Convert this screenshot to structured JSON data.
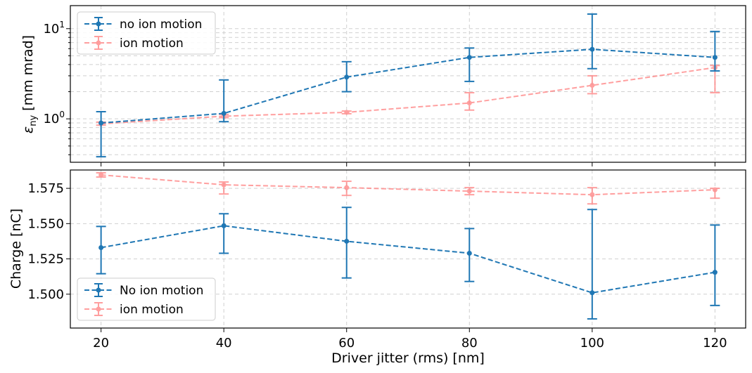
{
  "chart_data": [
    {
      "type": "line",
      "panel": "top",
      "ylabel_symbol": "ε",
      "ylabel_sub": "ny",
      "ylabel_unit": " [mm mrad]",
      "yscale": "log",
      "ylim": [
        0.33,
        18
      ],
      "yticks": [
        {
          "value": 1,
          "base": "10",
          "exp": "0"
        },
        {
          "value": 10,
          "base": "10",
          "exp": "1"
        }
      ],
      "x": [
        20,
        40,
        60,
        80,
        100,
        120
      ],
      "xlim": [
        15,
        125
      ],
      "series": [
        {
          "name": "no ion motion",
          "color": "#1f77b4",
          "alpha": 1,
          "values": [
            0.9,
            1.15,
            2.9,
            4.8,
            5.9,
            4.8
          ],
          "err_low": [
            0.38,
            0.93,
            2.0,
            2.6,
            3.6,
            3.4
          ],
          "err_high": [
            1.2,
            2.7,
            4.3,
            6.1,
            14.5,
            9.3
          ]
        },
        {
          "name": "ion motion",
          "color": "#ff7f7f",
          "alpha": 0.75,
          "values": [
            0.88,
            1.07,
            1.18,
            1.5,
            2.35,
            3.7
          ],
          "err_low": [
            0.85,
            1.03,
            1.14,
            1.25,
            1.9,
            1.95
          ],
          "err_high": [
            0.92,
            1.12,
            1.22,
            1.95,
            3.0,
            3.9
          ]
        }
      ]
    },
    {
      "type": "line",
      "panel": "bottom",
      "ylabel": "Charge [nC]",
      "xlabel": "Driver jitter (rms) [nm]",
      "ylim": [
        1.476,
        1.588
      ],
      "yticks": [
        1.5,
        1.525,
        1.55,
        1.575
      ],
      "ytick_labels": [
        "1.500",
        "1.525",
        "1.550",
        "1.575"
      ],
      "xticks": [
        20,
        40,
        60,
        80,
        100,
        120
      ],
      "xtick_labels": [
        "20",
        "40",
        "60",
        "80",
        "100",
        "120"
      ],
      "x": [
        20,
        40,
        60,
        80,
        100,
        120
      ],
      "xlim": [
        15,
        125
      ],
      "series": [
        {
          "name": "No ion motion",
          "color": "#1f77b4",
          "alpha": 1,
          "values": [
            1.533,
            1.5485,
            1.5375,
            1.529,
            1.501,
            1.5155
          ],
          "err_low": [
            1.5145,
            1.529,
            1.5115,
            1.509,
            1.4825,
            1.492
          ],
          "err_high": [
            1.548,
            1.557,
            1.5615,
            1.5465,
            1.56,
            1.549
          ]
        },
        {
          "name": "ion motion",
          "color": "#ff7f7f",
          "alpha": 0.75,
          "values": [
            1.5845,
            1.5775,
            1.5755,
            1.573,
            1.5705,
            1.574
          ],
          "err_low": [
            1.583,
            1.571,
            1.57,
            1.5705,
            1.564,
            1.568
          ],
          "err_high": [
            1.586,
            1.5795,
            1.58,
            1.5755,
            1.5755,
            1.575
          ]
        }
      ]
    }
  ]
}
